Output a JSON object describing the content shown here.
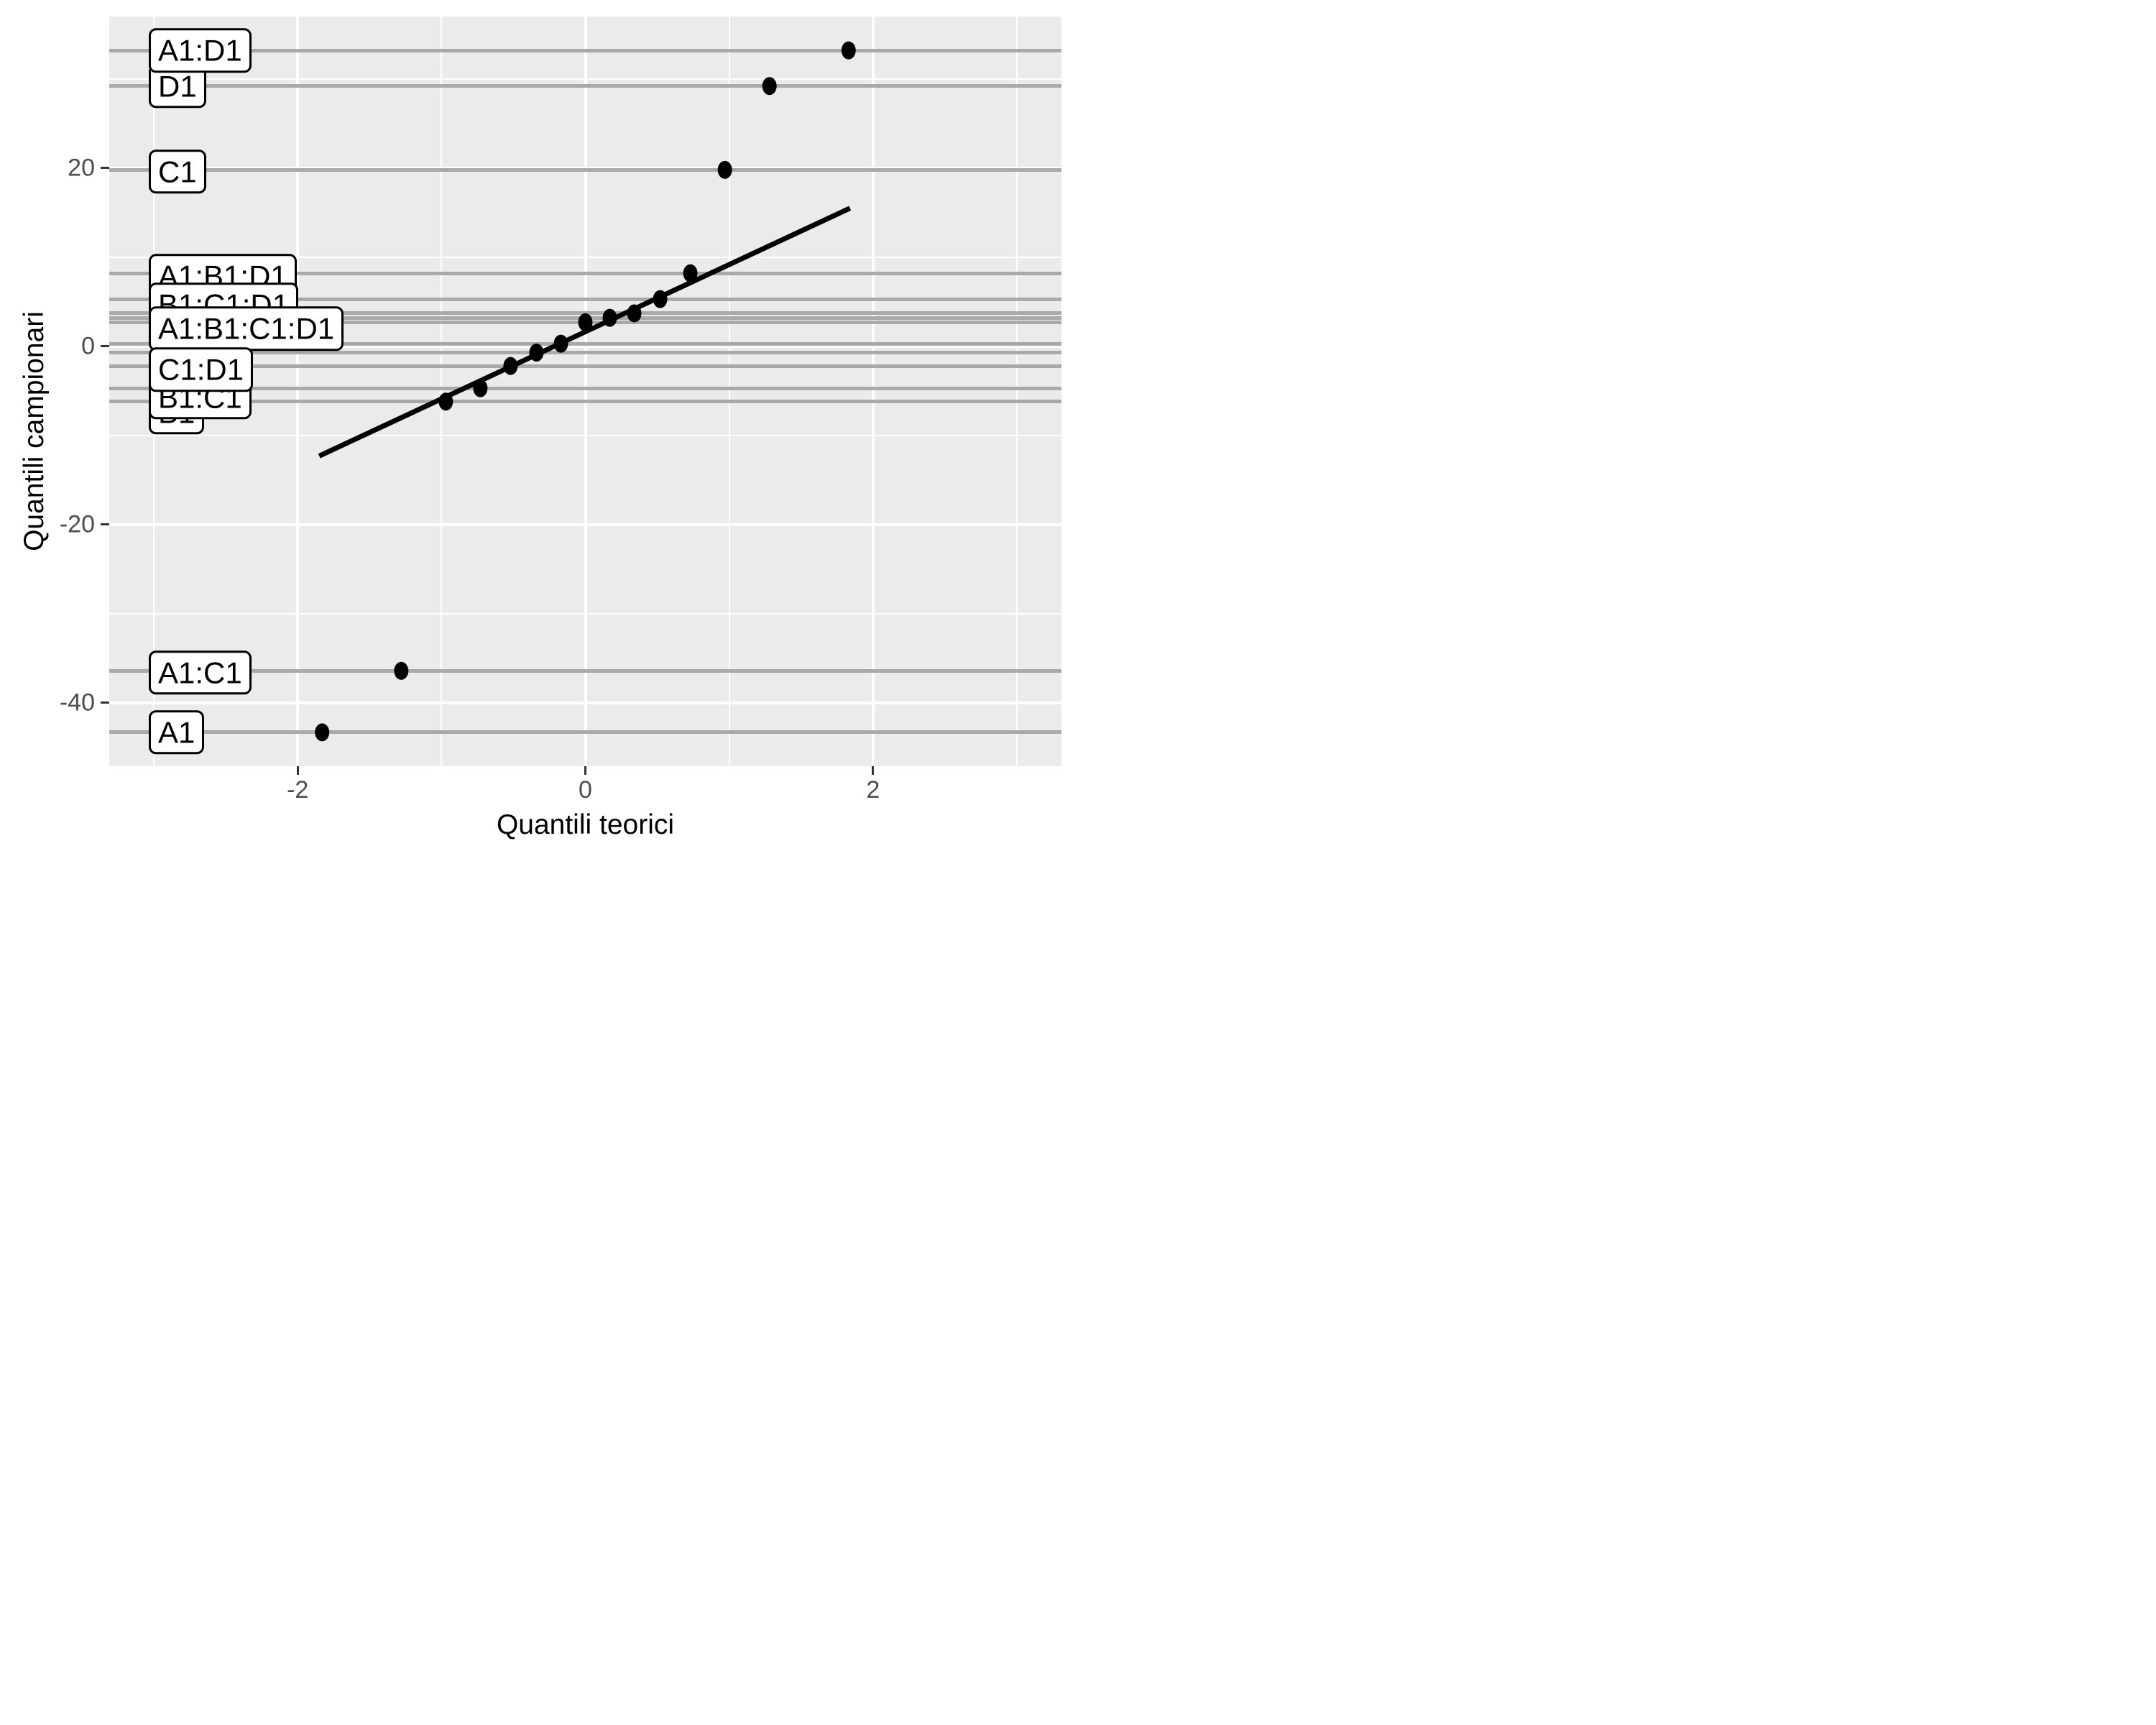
{
  "chart_data": {
    "type": "scatter",
    "title": "",
    "xlabel": "Quantili teorici",
    "ylabel": "Quantili campionari",
    "xlim": [
      -3.31,
      3.31
    ],
    "ylim": [
      -47.1,
      37.0
    ],
    "grid": "on",
    "legend": "none",
    "panel_bg": "#EBEBEB",
    "gridline_color": "#FFFFFF",
    "effect_line_color": "#A9A9A9",
    "point_color": "#000000",
    "reference_line_color": "#000000",
    "tick_text_color": "#4D4D4D",
    "label_box_bg": "#FFFFFF",
    "label_box_border": "#000000",
    "x_ticks": [
      {
        "v": -2,
        "label": "-2"
      },
      {
        "v": 0,
        "label": "0"
      },
      {
        "v": 2,
        "label": "2"
      }
    ],
    "y_ticks": [
      {
        "v": 20,
        "label": "20"
      },
      {
        "v": 0,
        "label": "0"
      },
      {
        "v": -20,
        "label": "-20"
      },
      {
        "v": -40,
        "label": "-40"
      }
    ],
    "x_minor_gridlines": [
      -3,
      -1,
      1,
      3
    ],
    "y_minor_gridlines": [
      30,
      10,
      -10,
      -30
    ],
    "points": [
      {
        "x": -1.83,
        "y": -43.3,
        "label": "A1"
      },
      {
        "x": -1.28,
        "y": -36.4,
        "label": "A1:C1"
      },
      {
        "x": -0.97,
        "y": -6.2,
        "label": "B1"
      },
      {
        "x": -0.73,
        "y": -4.7,
        "label": "B1:C1"
      },
      {
        "x": -0.52,
        "y": -2.2,
        "label": "C1:D1"
      },
      {
        "x": -0.34,
        "y": -0.7,
        "label": null
      },
      {
        "x": -0.17,
        "y": 0.3,
        "label": null
      },
      {
        "x": 0.0,
        "y": 2.7,
        "label": null
      },
      {
        "x": 0.17,
        "y": 3.2,
        "label": "A1:B1:C1:D1"
      },
      {
        "x": 0.34,
        "y": 3.7,
        "label": null
      },
      {
        "x": 0.52,
        "y": 5.3,
        "label": "B1:C1:D1"
      },
      {
        "x": 0.73,
        "y": 8.2,
        "label": "A1:B1:D1"
      },
      {
        "x": 0.97,
        "y": 19.8,
        "label": "C1"
      },
      {
        "x": 1.28,
        "y": 29.2,
        "label": "D1"
      },
      {
        "x": 1.83,
        "y": 33.2,
        "label": "A1:D1"
      }
    ],
    "reference_line": {
      "x1": -1.85,
      "y1": -12.3,
      "x2": 1.84,
      "y2": 15.5
    },
    "effect_labels_paint_order": [
      {
        "text": "D1",
        "label_y": 29.2
      },
      {
        "text": "A1:D1",
        "label_y": 33.2
      },
      {
        "text": "C1",
        "label_y": 19.6
      },
      {
        "text": "A1:B1:D1",
        "label_y": 7.9
      },
      {
        "text": "B1:C1:D1",
        "label_y": 4.7
      },
      {
        "text": "A1:B1:C1:D1",
        "label_y": 2.0
      },
      {
        "text": "B1",
        "label_y": -7.4
      },
      {
        "text": "B1:C1",
        "label_y": -5.7
      },
      {
        "text": "C1:D1",
        "label_y": -2.6
      },
      {
        "text": "A1:C1",
        "label_y": -36.6
      },
      {
        "text": "A1",
        "label_y": -43.3
      }
    ]
  }
}
